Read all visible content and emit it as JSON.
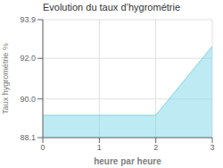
{
  "chart_data": {
    "type": "area",
    "title": "Evolution du taux d’hygrométrie",
    "xlabel": "heure par heure",
    "ylabel": "Taux hygrométrie %",
    "x": [
      0,
      1,
      2,
      3
    ],
    "values": [
      89.2,
      89.2,
      89.2,
      92.6
    ],
    "xlim": [
      0,
      3
    ],
    "ylim": [
      88.1,
      93.9
    ],
    "xticks": [
      0,
      1,
      2,
      3
    ],
    "yticks": [
      88.1,
      {
        "value": 90.0,
        "label": "90.0"
      },
      {
        "value": 92.0,
        "label": "92.0"
      },
      93.9
    ],
    "color": "#7dd6e8",
    "grid": true
  }
}
